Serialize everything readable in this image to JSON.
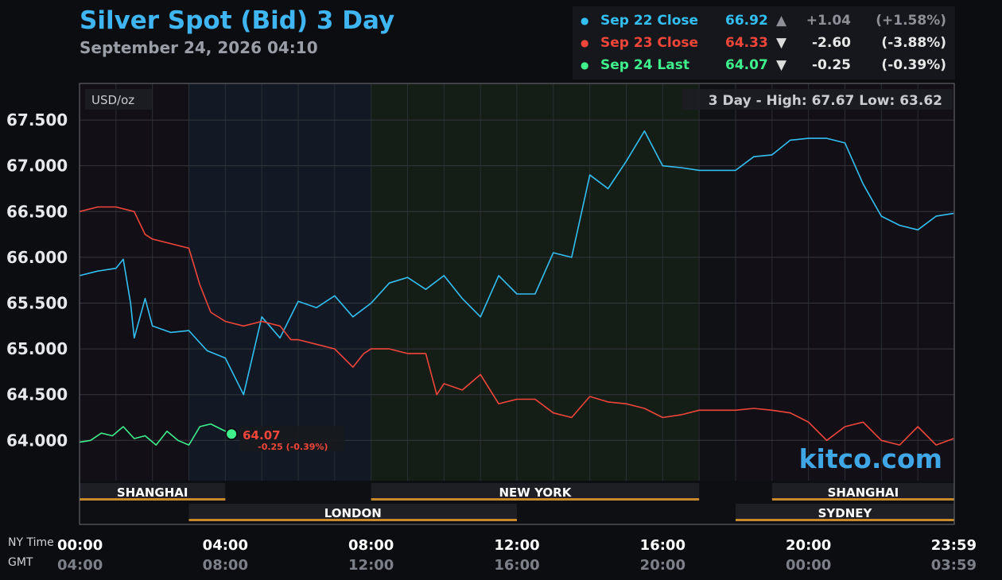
{
  "header": {
    "title": "Silver Spot (Bid) 3 Day",
    "subtitle": "September 24, 2026 04:10"
  },
  "legend": [
    {
      "label": "Sep 22 Close",
      "value": "66.92",
      "arrow": "▲",
      "change": "+1.04",
      "pct": "(+1.58%)",
      "color": "#33bff2",
      "muted": true
    },
    {
      "label": "Sep 23 Close",
      "value": "64.33",
      "arrow": "▼",
      "change": "-2.60",
      "pct": "(-3.88%)",
      "color": "#f0463a",
      "muted": false
    },
    {
      "label": "Sep 24 Last",
      "value": "64.07",
      "arrow": "▼",
      "change": "-0.25",
      "pct": "(-0.39%)",
      "color": "#3ff08c",
      "muted": false
    }
  ],
  "footer": {
    "ny_label": "NY Time",
    "gmt_label": "GMT"
  },
  "watermark": "kitco.com",
  "chart_data": {
    "type": "line",
    "unit_label": "USD/oz",
    "range_label": "3 Day - High: 67.67  Low: 63.62",
    "y_ticks": [
      "67.500",
      "67.000",
      "66.500",
      "66.000",
      "65.500",
      "65.000",
      "64.500",
      "64.000"
    ],
    "ylim": [
      63.56,
      67.9
    ],
    "x_ticks_ny": [
      "00:00",
      "04:00",
      "08:00",
      "12:00",
      "16:00",
      "20:00",
      "23:59"
    ],
    "x_ticks_gmt": [
      "04:00",
      "08:00",
      "12:00",
      "16:00",
      "20:00",
      "00:00",
      "03:59"
    ],
    "sessions": [
      {
        "name": "SHANGHAI",
        "start": 0,
        "end": 4,
        "row": 1
      },
      {
        "name": "NEW YORK",
        "start": 8,
        "end": 17,
        "row": 1
      },
      {
        "name": "SHANGHAI",
        "start": 19,
        "end": 24,
        "row": 1
      },
      {
        "name": "LONDON",
        "start": 3,
        "end": 12,
        "row": 2
      },
      {
        "name": "SYDNEY",
        "start": 18,
        "end": 24,
        "row": 2
      }
    ],
    "last_point": {
      "label": "64.07",
      "sub": "-0.25 (-0.39%)",
      "x": 4.17,
      "y": 64.07
    },
    "series": [
      {
        "name": "Sep 22 Close",
        "color": "#33bff2",
        "x": [
          0,
          0.5,
          1,
          1.2,
          1.4,
          1.5,
          1.8,
          2,
          2.5,
          3,
          3.5,
          4,
          4.5,
          5,
          5.5,
          6,
          6.5,
          7,
          7.5,
          8,
          8.5,
          9,
          9.5,
          10,
          10.5,
          11,
          11.5,
          12,
          12.5,
          13,
          13.5,
          14,
          14.5,
          15,
          15.5,
          16,
          16.5,
          17,
          18,
          18.5,
          19,
          19.5,
          20,
          20.5,
          21,
          21.5,
          22,
          22.5,
          23,
          23.5,
          23.98
        ],
        "y": [
          65.8,
          65.85,
          65.88,
          65.98,
          65.5,
          65.12,
          65.55,
          65.25,
          65.18,
          65.2,
          64.98,
          64.9,
          64.5,
          65.35,
          65.12,
          65.52,
          65.45,
          65.58,
          65.35,
          65.5,
          65.72,
          65.78,
          65.65,
          65.8,
          65.55,
          65.35,
          65.8,
          65.6,
          65.6,
          66.05,
          66.0,
          66.9,
          66.75,
          67.05,
          67.38,
          67.0,
          66.98,
          66.95,
          66.95,
          67.1,
          67.12,
          67.28,
          67.3,
          67.3,
          67.25,
          66.8,
          66.45,
          66.35,
          66.3,
          66.45,
          66.48
        ]
      },
      {
        "name": "Sep 23 Close",
        "color": "#f0463a",
        "x": [
          0,
          0.5,
          1,
          1.5,
          1.8,
          2,
          2.5,
          3,
          3.3,
          3.6,
          4,
          4.5,
          5,
          5.5,
          5.8,
          6,
          6.5,
          7,
          7.5,
          7.8,
          8,
          8.5,
          9,
          9.5,
          9.8,
          10,
          10.5,
          11,
          11.5,
          12,
          12.5,
          13,
          13.5,
          14,
          14.5,
          15,
          15.5,
          16,
          16.5,
          17,
          18,
          18.5,
          19,
          19.5,
          20,
          20.5,
          21,
          21.5,
          22,
          22.5,
          23,
          23.5,
          23.98
        ],
        "y": [
          66.5,
          66.55,
          66.55,
          66.5,
          66.25,
          66.2,
          66.15,
          66.1,
          65.7,
          65.4,
          65.3,
          65.25,
          65.3,
          65.25,
          65.1,
          65.1,
          65.05,
          65.0,
          64.8,
          64.95,
          65.0,
          65.0,
          64.95,
          64.95,
          64.5,
          64.62,
          64.55,
          64.72,
          64.4,
          64.45,
          64.45,
          64.3,
          64.25,
          64.48,
          64.42,
          64.4,
          64.35,
          64.25,
          64.28,
          64.33,
          64.33,
          64.35,
          64.33,
          64.3,
          64.2,
          64.0,
          64.15,
          64.2,
          64.0,
          63.95,
          64.15,
          63.95,
          64.02
        ]
      },
      {
        "name": "Sep 24 Last",
        "color": "#3ff08c",
        "x": [
          0,
          0.3,
          0.6,
          0.9,
          1.2,
          1.5,
          1.8,
          2.1,
          2.4,
          2.7,
          3.0,
          3.3,
          3.6,
          3.9,
          4.17
        ],
        "y": [
          63.98,
          64.0,
          64.08,
          64.05,
          64.15,
          64.02,
          64.05,
          63.95,
          64.1,
          64.0,
          63.95,
          64.15,
          64.18,
          64.12,
          64.07
        ]
      }
    ]
  }
}
